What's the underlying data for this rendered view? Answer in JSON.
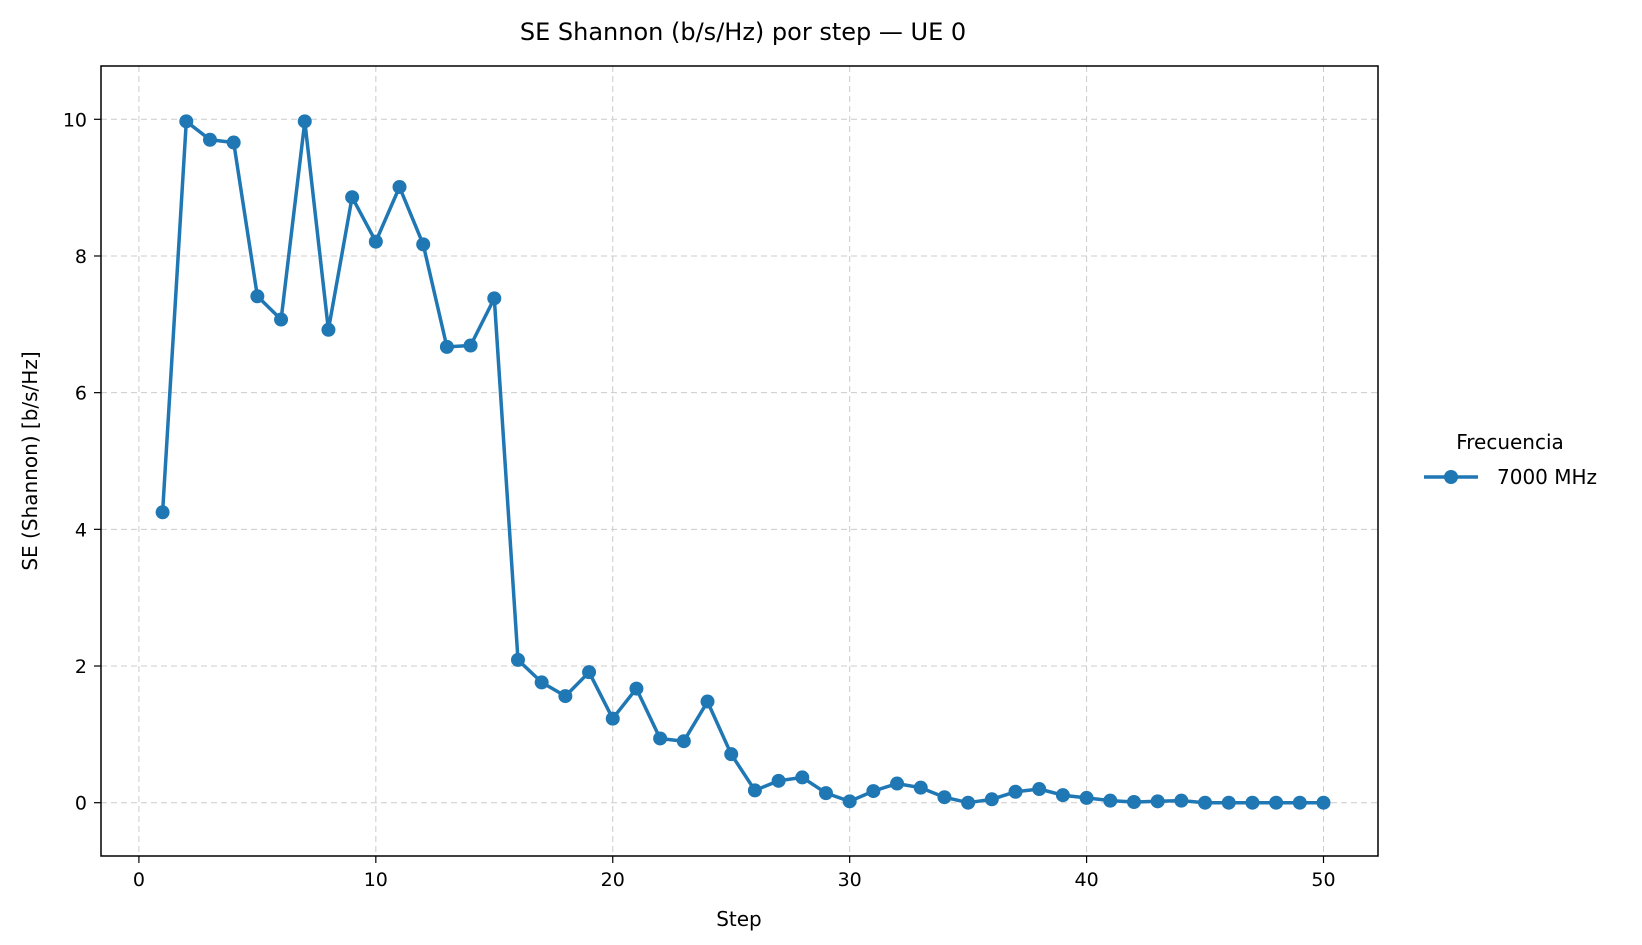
{
  "chart_data": {
    "type": "line",
    "title": "SE Shannon (b/s/Hz) por step — UE 0",
    "xlabel": "Step",
    "ylabel": "SE (Shannon) [b/s/Hz]",
    "xlim": [
      -1.6,
      52.3
    ],
    "ylim": [
      -0.78,
      10.78
    ],
    "xticks": [
      0,
      10,
      20,
      30,
      40,
      50
    ],
    "yticks": [
      0,
      2,
      4,
      6,
      8,
      10
    ],
    "grid": true,
    "legend": {
      "title": "Frecuencia",
      "placement": "outside-right"
    },
    "series": [
      {
        "name": "7000 MHz",
        "color": "#1f77b4",
        "marker": "circle",
        "x": [
          1,
          2,
          3,
          4,
          5,
          6,
          7,
          8,
          9,
          10,
          11,
          12,
          13,
          14,
          15,
          16,
          17,
          18,
          19,
          20,
          21,
          22,
          23,
          24,
          25,
          26,
          27,
          28,
          29,
          30,
          31,
          32,
          33,
          34,
          35,
          36,
          37,
          38,
          39,
          40,
          41,
          42,
          43,
          44,
          45,
          46,
          47,
          48,
          49,
          50
        ],
        "y": [
          4.25,
          9.97,
          9.7,
          9.66,
          7.41,
          7.07,
          9.97,
          6.92,
          8.86,
          8.21,
          9.01,
          8.17,
          6.67,
          6.69,
          7.38,
          2.09,
          1.76,
          1.56,
          1.91,
          1.23,
          1.67,
          0.94,
          0.9,
          1.48,
          0.71,
          0.18,
          0.32,
          0.37,
          0.14,
          0.02,
          0.17,
          0.28,
          0.22,
          0.08,
          0.0,
          0.05,
          0.16,
          0.2,
          0.11,
          0.07,
          0.03,
          0.01,
          0.02,
          0.03,
          0.0,
          0.0,
          0.0,
          0.0,
          0.0,
          0.0
        ]
      }
    ]
  }
}
